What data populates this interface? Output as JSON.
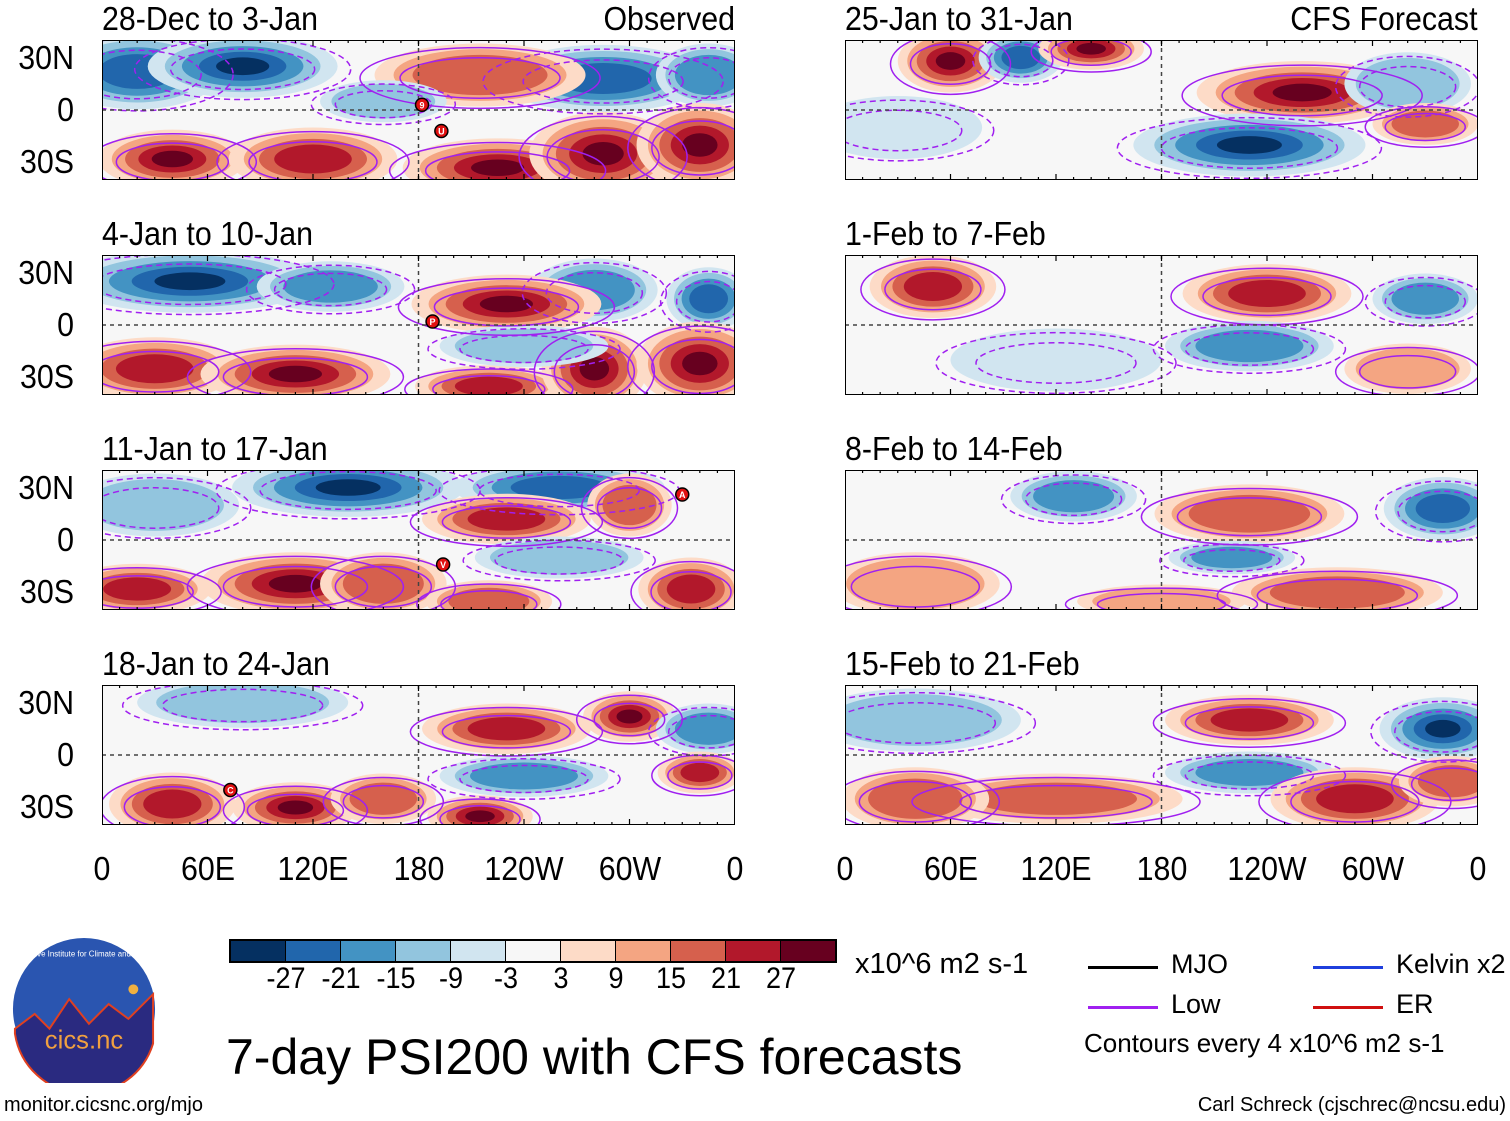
{
  "title": "7-day PSI200 with CFS forecasts",
  "units": "x10^6 m2 s-1",
  "contour_note": "Contours every 4 x10^6 m2 s-1",
  "site": "monitor.cicsnc.org/mjo",
  "author": "Carl Schreck (cjschrec@ncsu.edu)",
  "logo": {
    "text": "cics.nc",
    "ring": "Cooperative Institute for Climate and Satellites"
  },
  "labels": {
    "observed": "Observed",
    "forecast": "CFS Forecast"
  },
  "lat_ticks": [
    "30N",
    "0",
    "30S"
  ],
  "lon_ticks": [
    "0",
    "60E",
    "120E",
    "180",
    "120W",
    "60W",
    "0"
  ],
  "colorbar": {
    "colors": [
      "#053061",
      "#2166ac",
      "#4393c3",
      "#92c5de",
      "#d1e5f0",
      "#f7f7f7",
      "#fddbc7",
      "#f4a582",
      "#d6604d",
      "#b2182b",
      "#67001f"
    ],
    "ticks": [
      "-27",
      "-21",
      "-15",
      "-9",
      "-3",
      "3",
      "9",
      "15",
      "21",
      "27"
    ]
  },
  "legend": [
    {
      "label": "MJO",
      "color": "#000000"
    },
    {
      "label": "Kelvin x2",
      "color": "#1f3fdd"
    },
    {
      "label": "Low",
      "color": "#a020f0"
    },
    {
      "label": "ER",
      "color": "#d01010"
    }
  ],
  "chart_data": {
    "type": "heatmap",
    "x_range": [
      0,
      360
    ],
    "y_range": [
      -40,
      40
    ],
    "panels": [
      {
        "title": "28-Dec to 3-Jan",
        "tag": "Observed",
        "storms": [
          {
            "id": "9",
            "lon": 182,
            "lat": 3
          },
          {
            "id": "U",
            "lon": 193,
            "lat": -12
          }
        ],
        "anomalies": [
          {
            "lon": 20,
            "lat": 22,
            "v": -21,
            "w": 40,
            "h": 18
          },
          {
            "lon": 80,
            "lat": 25,
            "v": -27,
            "w": 45,
            "h": 15
          },
          {
            "lon": 285,
            "lat": 18,
            "v": -21,
            "w": 50,
            "h": 16
          },
          {
            "lon": 345,
            "lat": 20,
            "v": -15,
            "w": 25,
            "h": 15
          },
          {
            "lon": 40,
            "lat": -28,
            "v": 27,
            "w": 35,
            "h": 14
          },
          {
            "lon": 120,
            "lat": -28,
            "v": 21,
            "w": 40,
            "h": 15
          },
          {
            "lon": 225,
            "lat": -33,
            "v": 27,
            "w": 45,
            "h": 14
          },
          {
            "lon": 285,
            "lat": -25,
            "v": 27,
            "w": 35,
            "h": 20
          },
          {
            "lon": 340,
            "lat": -20,
            "v": 27,
            "w": 30,
            "h": 20
          },
          {
            "lon": 215,
            "lat": 20,
            "v": 15,
            "w": 50,
            "h": 15
          },
          {
            "lon": 160,
            "lat": 5,
            "v": -9,
            "w": 30,
            "h": 10
          }
        ]
      },
      {
        "title": "4-Jan to 10-Jan",
        "storms": [
          {
            "id": "P",
            "lon": 188,
            "lat": 2
          }
        ],
        "anomalies": [
          {
            "lon": 50,
            "lat": 25,
            "v": -27,
            "w": 60,
            "h": 15
          },
          {
            "lon": 130,
            "lat": 22,
            "v": -15,
            "w": 35,
            "h": 12
          },
          {
            "lon": 280,
            "lat": 20,
            "v": -15,
            "w": 30,
            "h": 15
          },
          {
            "lon": 345,
            "lat": 15,
            "v": -21,
            "w": 20,
            "h": 15
          },
          {
            "lon": 230,
            "lat": 12,
            "v": 27,
            "w": 45,
            "h": 14
          },
          {
            "lon": 30,
            "lat": -25,
            "v": 21,
            "w": 40,
            "h": 15
          },
          {
            "lon": 110,
            "lat": -28,
            "v": 27,
            "w": 45,
            "h": 14
          },
          {
            "lon": 220,
            "lat": -35,
            "v": 21,
            "w": 35,
            "h": 10
          },
          {
            "lon": 280,
            "lat": -25,
            "v": 27,
            "w": 25,
            "h": 20
          },
          {
            "lon": 340,
            "lat": -22,
            "v": 27,
            "w": 30,
            "h": 20
          },
          {
            "lon": 240,
            "lat": -12,
            "v": -9,
            "w": 40,
            "h": 10
          }
        ]
      },
      {
        "title": "11-Jan to 17-Jan",
        "storms": [
          {
            "id": "A",
            "lon": 330,
            "lat": 26
          },
          {
            "id": "V",
            "lon": 194,
            "lat": -14
          }
        ],
        "anomalies": [
          {
            "lon": 140,
            "lat": 30,
            "v": -27,
            "w": 55,
            "h": 14
          },
          {
            "lon": 260,
            "lat": 30,
            "v": -21,
            "w": 50,
            "h": 12
          },
          {
            "lon": 30,
            "lat": 20,
            "v": -9,
            "w": 40,
            "h": 15
          },
          {
            "lon": 230,
            "lat": 12,
            "v": 21,
            "w": 40,
            "h": 12
          },
          {
            "lon": 300,
            "lat": 20,
            "v": 15,
            "w": 20,
            "h": 15
          },
          {
            "lon": 20,
            "lat": -28,
            "v": 21,
            "w": 35,
            "h": 12
          },
          {
            "lon": 110,
            "lat": -25,
            "v": 27,
            "w": 45,
            "h": 15
          },
          {
            "lon": 160,
            "lat": -25,
            "v": 15,
            "w": 30,
            "h": 15
          },
          {
            "lon": 220,
            "lat": -35,
            "v": 15,
            "w": 30,
            "h": 10
          },
          {
            "lon": 335,
            "lat": -28,
            "v": 21,
            "w": 25,
            "h": 15
          },
          {
            "lon": 260,
            "lat": -10,
            "v": -9,
            "w": 40,
            "h": 10
          }
        ]
      },
      {
        "title": "18-Jan to 24-Jan",
        "storms": [
          {
            "id": "C",
            "lon": 73,
            "lat": -20
          }
        ],
        "anomalies": [
          {
            "lon": 80,
            "lat": 30,
            "v": -9,
            "w": 50,
            "h": 12
          },
          {
            "lon": 230,
            "lat": 15,
            "v": 21,
            "w": 40,
            "h": 12
          },
          {
            "lon": 300,
            "lat": 22,
            "v": 27,
            "w": 22,
            "h": 12
          },
          {
            "lon": 345,
            "lat": 15,
            "v": -15,
            "w": 25,
            "h": 12
          },
          {
            "lon": 240,
            "lat": -12,
            "v": -15,
            "w": 40,
            "h": 10
          },
          {
            "lon": 40,
            "lat": -28,
            "v": 21,
            "w": 30,
            "h": 15
          },
          {
            "lon": 110,
            "lat": -30,
            "v": 27,
            "w": 30,
            "h": 12
          },
          {
            "lon": 160,
            "lat": -25,
            "v": 15,
            "w": 25,
            "h": 12
          },
          {
            "lon": 215,
            "lat": -35,
            "v": 27,
            "w": 25,
            "h": 10
          },
          {
            "lon": 340,
            "lat": -10,
            "v": 21,
            "w": 20,
            "h": 10
          }
        ]
      },
      {
        "title": "25-Jan to 31-Jan",
        "tag": "CFS Forecast",
        "storms": [],
        "anomalies": [
          {
            "lon": 60,
            "lat": 28,
            "v": 27,
            "w": 25,
            "h": 15
          },
          {
            "lon": 100,
            "lat": 30,
            "v": -21,
            "w": 20,
            "h": 12
          },
          {
            "lon": 140,
            "lat": 35,
            "v": 27,
            "w": 25,
            "h": 10
          },
          {
            "lon": 260,
            "lat": 10,
            "v": 27,
            "w": 50,
            "h": 15
          },
          {
            "lon": 230,
            "lat": -20,
            "v": -27,
            "w": 55,
            "h": 15
          },
          {
            "lon": 320,
            "lat": 15,
            "v": -9,
            "w": 30,
            "h": 15
          },
          {
            "lon": 330,
            "lat": -8,
            "v": 15,
            "w": 25,
            "h": 10
          },
          {
            "lon": 30,
            "lat": -10,
            "v": -3,
            "w": 40,
            "h": 15
          }
        ]
      },
      {
        "title": "1-Feb to 7-Feb",
        "storms": [],
        "anomalies": [
          {
            "lon": 50,
            "lat": 22,
            "v": 21,
            "w": 30,
            "h": 15
          },
          {
            "lon": 240,
            "lat": 18,
            "v": 21,
            "w": 40,
            "h": 14
          },
          {
            "lon": 230,
            "lat": -12,
            "v": -15,
            "w": 40,
            "h": 12
          },
          {
            "lon": 330,
            "lat": 15,
            "v": -15,
            "w": 25,
            "h": 12
          },
          {
            "lon": 120,
            "lat": -20,
            "v": -3,
            "w": 50,
            "h": 15
          },
          {
            "lon": 320,
            "lat": -25,
            "v": 9,
            "w": 30,
            "h": 12
          }
        ]
      },
      {
        "title": "8-Feb to 14-Feb",
        "storms": [],
        "anomalies": [
          {
            "lon": 130,
            "lat": 25,
            "v": -15,
            "w": 30,
            "h": 12
          },
          {
            "lon": 230,
            "lat": 15,
            "v": 15,
            "w": 45,
            "h": 14
          },
          {
            "lon": 340,
            "lat": 18,
            "v": -21,
            "w": 28,
            "h": 15
          },
          {
            "lon": 220,
            "lat": -10,
            "v": -15,
            "w": 30,
            "h": 8
          },
          {
            "lon": 40,
            "lat": -25,
            "v": 9,
            "w": 40,
            "h": 15
          },
          {
            "lon": 280,
            "lat": -30,
            "v": 15,
            "w": 50,
            "h": 12
          },
          {
            "lon": 180,
            "lat": -35,
            "v": 9,
            "w": 40,
            "h": 8
          }
        ]
      },
      {
        "title": "15-Feb to 21-Feb",
        "storms": [],
        "anomalies": [
          {
            "lon": 230,
            "lat": 20,
            "v": 21,
            "w": 40,
            "h": 12
          },
          {
            "lon": 340,
            "lat": 15,
            "v": -27,
            "w": 30,
            "h": 15
          },
          {
            "lon": 40,
            "lat": 20,
            "v": -9,
            "w": 50,
            "h": 15
          },
          {
            "lon": 230,
            "lat": -10,
            "v": -15,
            "w": 40,
            "h": 10
          },
          {
            "lon": 290,
            "lat": -25,
            "v": 21,
            "w": 40,
            "h": 15
          },
          {
            "lon": 120,
            "lat": -25,
            "v": 15,
            "w": 60,
            "h": 12
          },
          {
            "lon": 40,
            "lat": -25,
            "v": 15,
            "w": 35,
            "h": 15
          },
          {
            "lon": 345,
            "lat": -15,
            "v": 15,
            "w": 25,
            "h": 12
          }
        ]
      }
    ]
  }
}
